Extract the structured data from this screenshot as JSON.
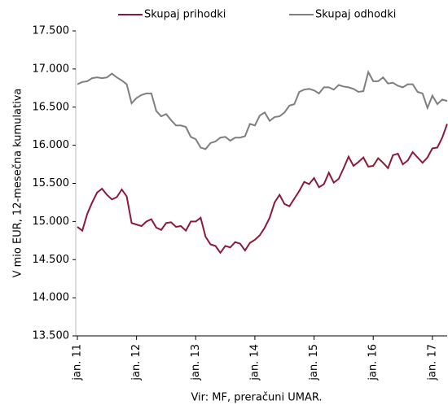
{
  "chart_data": {
    "type": "line",
    "y_label": "V mio EUR, 12-mesečna kumulativa",
    "source": "Vir: MF, preračuni UMAR.",
    "categories": [
      "jan. 11",
      null,
      null,
      null,
      null,
      null,
      null,
      null,
      null,
      null,
      null,
      null,
      "jan. 12",
      null,
      null,
      null,
      null,
      null,
      null,
      null,
      null,
      null,
      null,
      null,
      "jan. 13",
      null,
      null,
      null,
      null,
      null,
      null,
      null,
      null,
      null,
      null,
      null,
      "jan. 14",
      null,
      null,
      null,
      null,
      null,
      null,
      null,
      null,
      null,
      null,
      null,
      "jan. 15",
      null,
      null,
      null,
      null,
      null,
      null,
      null,
      null,
      null,
      null,
      null,
      "jan. 16",
      null,
      null,
      null,
      null,
      null,
      null,
      null,
      null,
      null,
      null,
      null,
      "jan. 17",
      null,
      null,
      null
    ],
    "series": [
      {
        "name": "Skupaj prihodki",
        "color": "#8b1a3a",
        "values": [
          14930,
          14880,
          15100,
          15250,
          15380,
          15430,
          15350,
          15290,
          15320,
          15420,
          15330,
          14980,
          14960,
          14940,
          15000,
          15030,
          14920,
          14890,
          14980,
          14990,
          14930,
          14940,
          14880,
          15000,
          15000,
          15050,
          14800,
          14700,
          14680,
          14590,
          14680,
          14660,
          14730,
          14710,
          14620,
          14720,
          14760,
          14820,
          14920,
          15050,
          15250,
          15350,
          15230,
          15200,
          15300,
          15400,
          15520,
          15490,
          15570,
          15450,
          15490,
          15640,
          15510,
          15560,
          15700,
          15850,
          15730,
          15780,
          15840,
          15720,
          15730,
          15830,
          15770,
          15700,
          15870,
          15890,
          15750,
          15800,
          15910,
          15840,
          15770,
          15840,
          15960,
          15970,
          16100,
          16280
        ]
      },
      {
        "name": "Skupaj odhodki",
        "color": "#7f7f7f",
        "values": [
          16800,
          16830,
          16840,
          16880,
          16890,
          16880,
          16890,
          16940,
          16890,
          16850,
          16800,
          16550,
          16620,
          16660,
          16680,
          16680,
          16450,
          16380,
          16410,
          16330,
          16260,
          16260,
          16240,
          16110,
          16080,
          15970,
          15950,
          16030,
          16050,
          16100,
          16110,
          16060,
          16100,
          16100,
          16120,
          16280,
          16260,
          16390,
          16430,
          16320,
          16370,
          16380,
          16430,
          16520,
          16540,
          16700,
          16730,
          16740,
          16720,
          16680,
          16760,
          16760,
          16730,
          16790,
          16770,
          16760,
          16740,
          16700,
          16710,
          16960,
          16840,
          16840,
          16890,
          16810,
          16820,
          16780,
          16760,
          16800,
          16800,
          16700,
          16680,
          16490,
          16650,
          16540,
          16600,
          16580
        ]
      }
    ],
    "ylim": [
      13500,
      17500
    ],
    "yticks": [
      {
        "value": 13500,
        "label": "13.500"
      },
      {
        "value": 14000,
        "label": "14.000"
      },
      {
        "value": 14500,
        "label": "14.500"
      },
      {
        "value": 15000,
        "label": "15.000"
      },
      {
        "value": 15500,
        "label": "15.500"
      },
      {
        "value": 16000,
        "label": "16.000"
      },
      {
        "value": 16500,
        "label": "16.500"
      },
      {
        "value": 17000,
        "label": "17.000"
      },
      {
        "value": 17500,
        "label": "17.500"
      }
    ]
  }
}
